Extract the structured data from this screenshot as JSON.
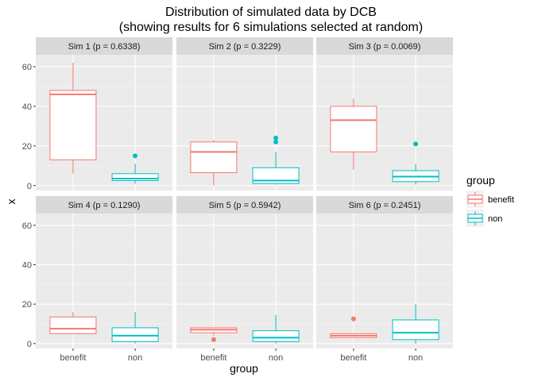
{
  "chart_data": {
    "type": "boxplot",
    "title": "Distribution of simulated data by DCB",
    "subtitle": "(showing results for 6 simulations selected at random)",
    "xlabel": "group",
    "ylabel": "x",
    "categories": [
      "benefit",
      "non"
    ],
    "ylim": [
      -2.5,
      66
    ],
    "yticks": [
      0,
      20,
      40,
      60
    ],
    "facet_grid": "2 rows x 3 columns",
    "legend": {
      "title": "group",
      "placement": "right",
      "entries": [
        {
          "label": "benefit",
          "color": "#F8766D"
        },
        {
          "label": "non",
          "color": "#00BFC4"
        }
      ]
    },
    "panels": [
      {
        "label": "Sim 1 (p = 0.6338)",
        "boxes": [
          {
            "group": "benefit",
            "min": 6,
            "q1": 13,
            "median": 46,
            "q3": 48,
            "max": 62,
            "outliers": []
          },
          {
            "group": "non",
            "min": 1,
            "q1": 2.5,
            "median": 3.5,
            "q3": 6,
            "max": 11,
            "outliers": [
              15
            ]
          }
        ]
      },
      {
        "label": "Sim 2 (p = 0.3229)",
        "boxes": [
          {
            "group": "benefit",
            "min": 0,
            "q1": 6.5,
            "median": 17,
            "q3": 22,
            "max": 23,
            "outliers": []
          },
          {
            "group": "non",
            "min": 0.5,
            "q1": 1,
            "median": 2.5,
            "q3": 9,
            "max": 17,
            "outliers": [
              22,
              24
            ]
          }
        ]
      },
      {
        "label": "Sim 3 (p = 0.0069)",
        "boxes": [
          {
            "group": "benefit",
            "min": 8,
            "q1": 17,
            "median": 33,
            "q3": 40,
            "max": 44,
            "outliers": []
          },
          {
            "group": "non",
            "min": 0.5,
            "q1": 2,
            "median": 4.5,
            "q3": 7.5,
            "max": 11,
            "outliers": [
              21
            ]
          }
        ]
      },
      {
        "label": "Sim 4 (p = 0.1290)",
        "boxes": [
          {
            "group": "benefit",
            "min": 5,
            "q1": 5,
            "median": 7.5,
            "q3": 13.5,
            "max": 16,
            "outliers": []
          },
          {
            "group": "non",
            "min": 0,
            "q1": 1,
            "median": 4,
            "q3": 8,
            "max": 16,
            "outliers": []
          }
        ]
      },
      {
        "label": "Sim 5 (p = 0.5942)",
        "boxes": [
          {
            "group": "benefit",
            "min": 4,
            "q1": 5.5,
            "median": 7,
            "q3": 8,
            "max": 8,
            "outliers": [
              2
            ]
          },
          {
            "group": "non",
            "min": 0,
            "q1": 1,
            "median": 3,
            "q3": 6.5,
            "max": 14.5,
            "outliers": []
          }
        ]
      },
      {
        "label": "Sim 6 (p = 0.2451)",
        "boxes": [
          {
            "group": "benefit",
            "min": 3,
            "q1": 3,
            "median": 4,
            "q3": 5,
            "max": 5,
            "outliers": [
              12.5
            ]
          },
          {
            "group": "non",
            "min": 0,
            "q1": 2,
            "median": 5.5,
            "q3": 12,
            "max": 20,
            "outliers": []
          }
        ]
      }
    ]
  }
}
